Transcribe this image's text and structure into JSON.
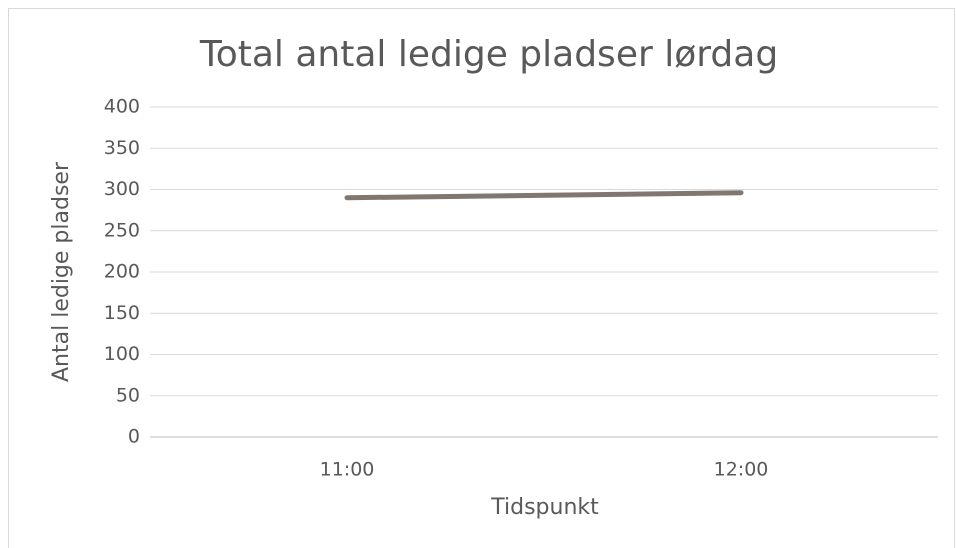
{
  "chart_data": {
    "type": "line",
    "title": "Total antal ledige pladser lørdag",
    "x_label": "Tidspunkt",
    "y_label": "Antal ledige pladser",
    "categories": [
      "11:00",
      "12:00"
    ],
    "values": [
      290,
      296
    ],
    "color": "#7f7770",
    "ylim": [
      0,
      400
    ],
    "yticks": [
      0,
      50,
      100,
      150,
      200,
      250,
      300,
      350,
      400
    ],
    "grid": true
  }
}
